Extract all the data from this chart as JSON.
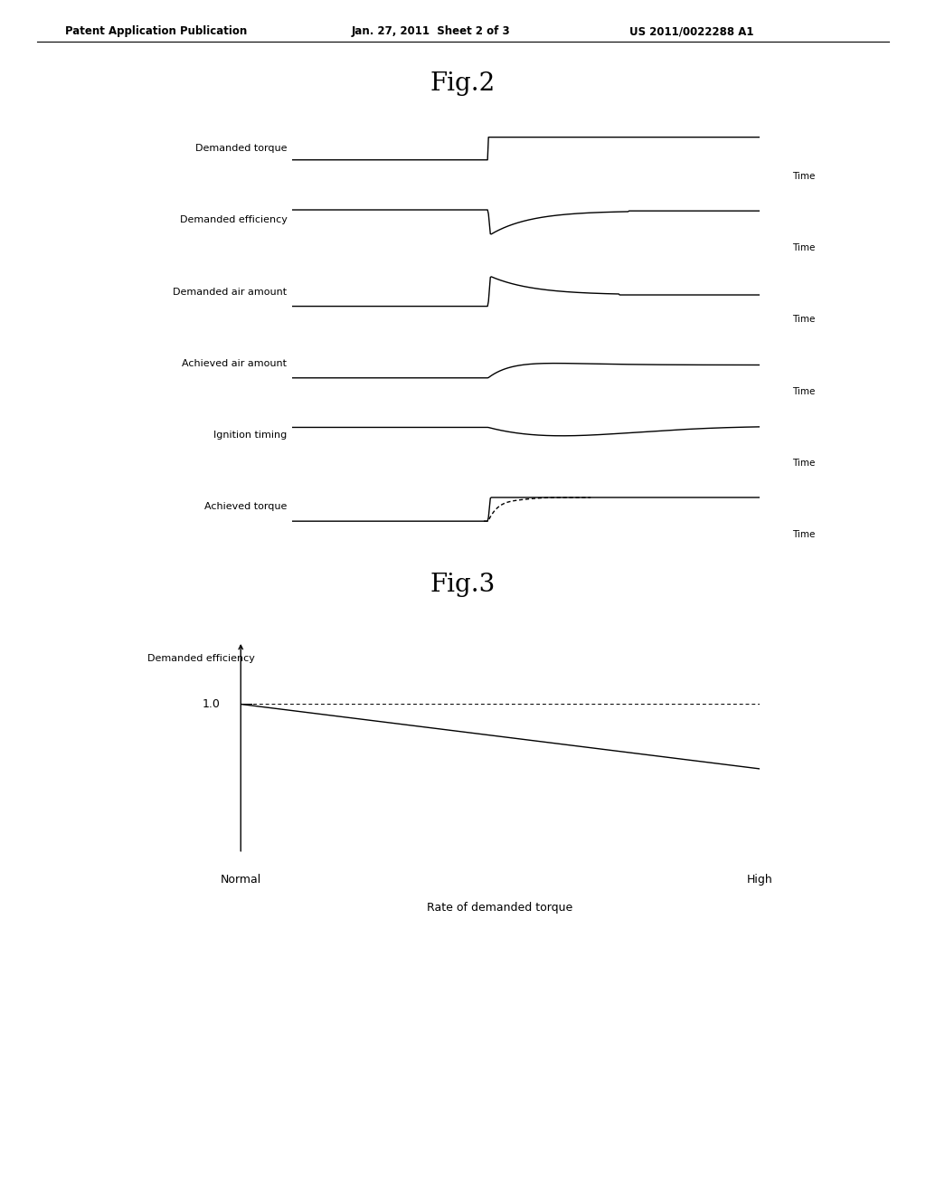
{
  "bg_color": "#ffffff",
  "header_text": "Patent Application Publication",
  "header_date": "Jan. 27, 2011  Sheet 2 of 3",
  "header_patent": "US 2011/0022288 A1",
  "fig2_title": "Fig.2",
  "fig3_title": "Fig.3",
  "panel_labels": [
    "Demanded torque",
    "Demanded efficiency",
    "Demanded air amount",
    "Achieved air amount",
    "Ignition timing",
    "Achieved torque"
  ],
  "fig3_xlabel": "Rate of demanded torque",
  "fig3_ylabel": "Demanded efficiency",
  "fig3_x_left": "Normal",
  "fig3_x_right": "High",
  "fig3_y_tick": "1.0"
}
